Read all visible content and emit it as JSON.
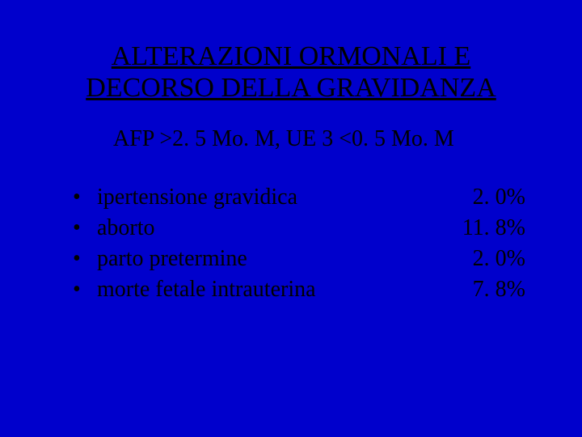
{
  "slide": {
    "background_color": "#0000cc",
    "text_color": "#000000",
    "title": {
      "line1": "ALTERAZIONI ORMONALI E",
      "line2": "DECORSO DELLA GRAVIDANZA",
      "fontsize": 34,
      "underline": true
    },
    "subtitle": {
      "text": "AFP >2. 5 Mo. M, UE 3 <0. 5 Mo. M",
      "fontsize": 28
    },
    "bullet_char": "•",
    "items_fontsize": 28,
    "items": [
      {
        "label": "ipertensione gravidica",
        "value": "2. 0%"
      },
      {
        "label": "aborto",
        "value": "11. 8%"
      },
      {
        "label": "parto pretermine",
        "value": "2. 0%"
      },
      {
        "label": "morte fetale intrauterina",
        "value": "7. 8%"
      }
    ]
  }
}
